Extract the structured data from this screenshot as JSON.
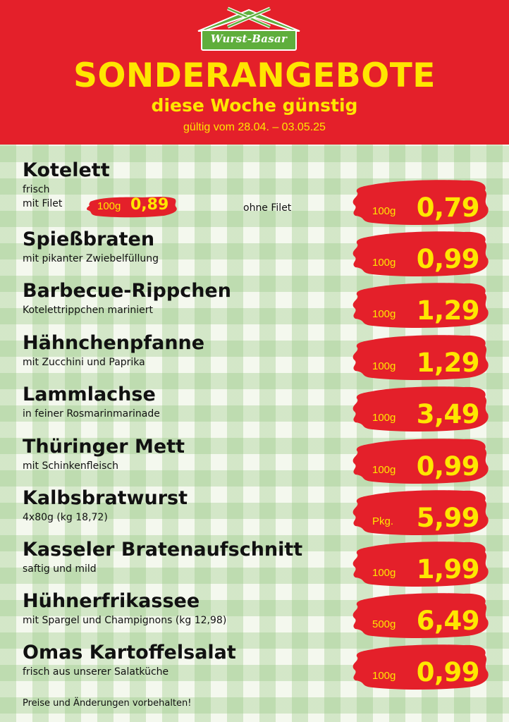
{
  "header": {
    "logo_text": "Wurst-Basar",
    "title": "SONDERANGEBOTE",
    "subtitle": "diese Woche günstig",
    "validity": "gültig vom 28.04. – 03.05.25"
  },
  "colors": {
    "red": "#e4202a",
    "yellow": "#ffe600",
    "green": "#5fae3c"
  },
  "items": [
    {
      "name": "Kotelett",
      "desc": "frisch",
      "desc2": "mit Filet",
      "unit": "100g",
      "price": "0,79",
      "extra": {
        "unit": "100g",
        "price": "0,89",
        "label": "ohne Filet"
      }
    },
    {
      "name": "Spießbraten",
      "desc": "mit pikanter Zwiebelfüllung",
      "unit": "100g",
      "price": "0,99"
    },
    {
      "name": "Barbecue-Rippchen",
      "desc": "Kotelettrippchen mariniert",
      "unit": "100g",
      "price": "1,29"
    },
    {
      "name": "Hähnchenpfanne",
      "desc": "mit Zucchini und Paprika",
      "unit": "100g",
      "price": "1,29"
    },
    {
      "name": "Lammlachse",
      "desc": "in feiner Rosmarinmarinade",
      "unit": "100g",
      "price": "3,49"
    },
    {
      "name": "Thüringer Mett",
      "desc": "mit Schinkenfleisch",
      "unit": "100g",
      "price": "0,99"
    },
    {
      "name": "Kalbsbratwurst",
      "desc": "4x80g (kg 18,72)",
      "unit": "Pkg.",
      "price": "5,99"
    },
    {
      "name": "Kasseler Bratenaufschnitt",
      "desc": "saftig und mild",
      "unit": "100g",
      "price": "1,99"
    },
    {
      "name": "Hühnerfrikassee",
      "desc": "mit Spargel und Champignons (kg 12,98)",
      "unit": "500g",
      "price": "6,49"
    },
    {
      "name": "Omas Kartoffelsalat",
      "desc": "frisch aus unserer Salatküche",
      "unit": "100g",
      "price": "0,99"
    }
  ],
  "footer": "Preise und Änderungen vorbehalten!"
}
